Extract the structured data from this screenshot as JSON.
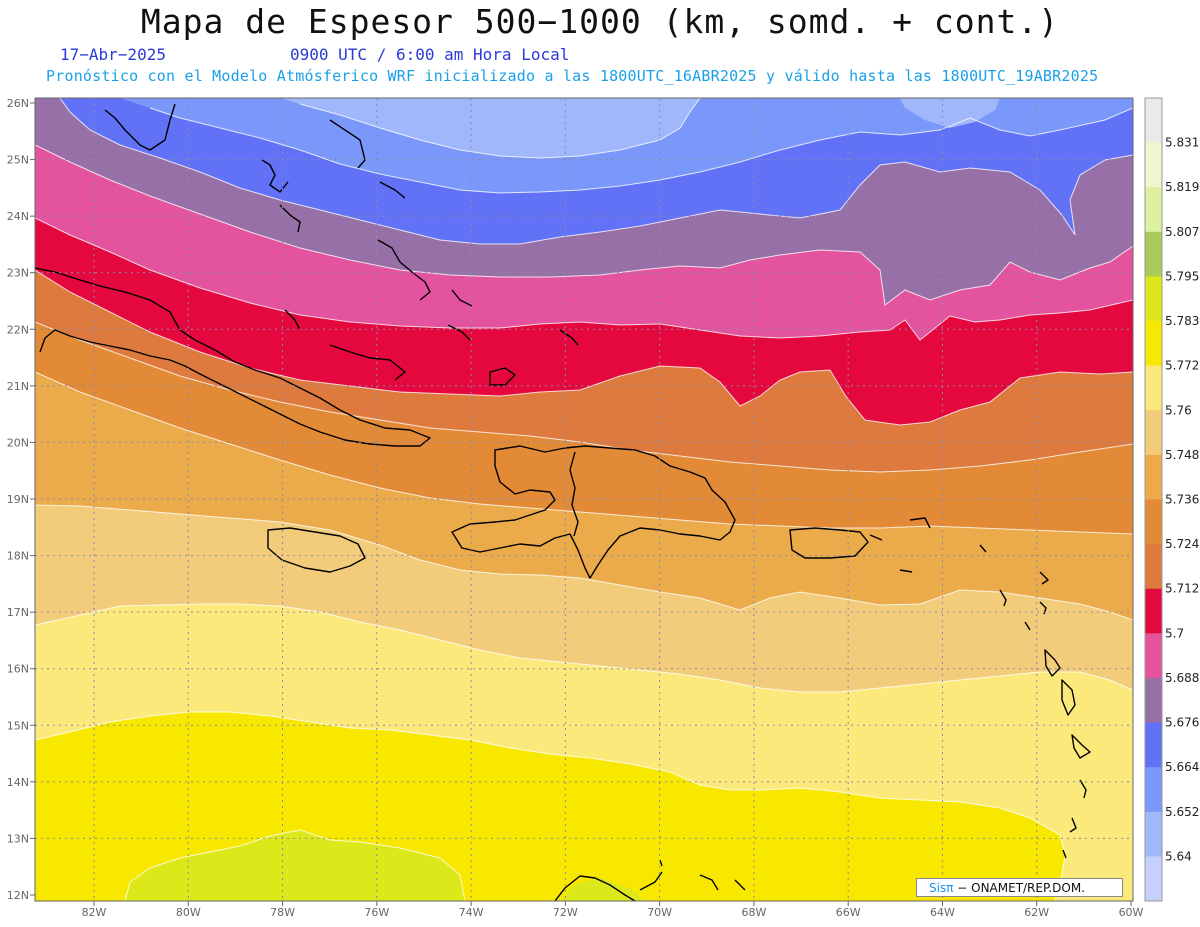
{
  "header": {
    "title": "Mapa de Espesor 500−1000 (km, somd. + cont.)",
    "date": "17−Abr−2025",
    "valid_time": "0900 UTC / 6:00 am Hora Local",
    "subtitle": "Pronóstico con el Modelo Atmósferico WRF inicializado a las 1800UTC_16ABR2025 y válido hasta las  1800UTC_19ABR2025"
  },
  "map": {
    "lat_labels": [
      "26N",
      "25N",
      "24N",
      "23N",
      "22N",
      "21N",
      "20N",
      "19N",
      "18N",
      "17N",
      "16N",
      "15N",
      "14N",
      "13N",
      "12N"
    ],
    "lon_labels": [
      "82W",
      "80W",
      "78W",
      "76W",
      "74W",
      "72W",
      "70W",
      "68W",
      "66W",
      "64W",
      "62W",
      "60W"
    ],
    "grid": true
  },
  "colorbar": {
    "labels": [
      "5.831",
      "5.819",
      "5.807",
      "5.795",
      "5.783",
      "5.772",
      "5.76",
      "5.748",
      "5.736",
      "5.724",
      "5.712",
      "5.7",
      "5.688",
      "5.676",
      "5.664",
      "5.652",
      "5.64"
    ],
    "colors": [
      "#eaeaea",
      "#f0f5d0",
      "#dcf0a0",
      "#a8cc58",
      "#dce81a",
      "#f8e800",
      "#fbe97c",
      "#f2cc7a",
      "#ecab4a",
      "#e28a36",
      "#de7a3e",
      "#e4083e",
      "#e4549e",
      "#9870a8",
      "#6272f6",
      "#7a98fa",
      "#a0b8fb",
      "#c6d0fc"
    ]
  },
  "credit": {
    "sis": "Sisπ",
    "text": " −  ONAMET/REP.DOM."
  }
}
